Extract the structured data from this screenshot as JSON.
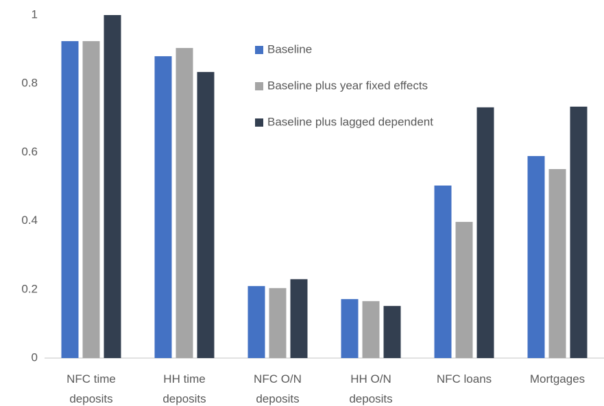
{
  "chart_data": {
    "type": "bar",
    "categories": [
      "NFC time deposits",
      "HH time deposits",
      "NFC O/N deposits",
      "HH O/N deposits",
      "NFC loans",
      "Mortgages"
    ],
    "series": [
      {
        "name": "Baseline",
        "color": "#4472c4",
        "values": [
          0.924,
          0.88,
          0.21,
          0.172,
          0.503,
          0.589
        ]
      },
      {
        "name": "Baseline plus year fixed effects",
        "color": "#a5a5a5",
        "values": [
          0.924,
          0.904,
          0.204,
          0.166,
          0.397,
          0.551
        ]
      },
      {
        "name": "Baseline plus lagged dependent",
        "color": "#333f50",
        "values": [
          1.0,
          0.834,
          0.23,
          0.152,
          0.731,
          0.733
        ]
      }
    ],
    "ylim": [
      0,
      1
    ],
    "yticks": [
      0,
      0.2,
      0.4,
      0.6,
      0.8,
      1
    ],
    "grid": false
  }
}
